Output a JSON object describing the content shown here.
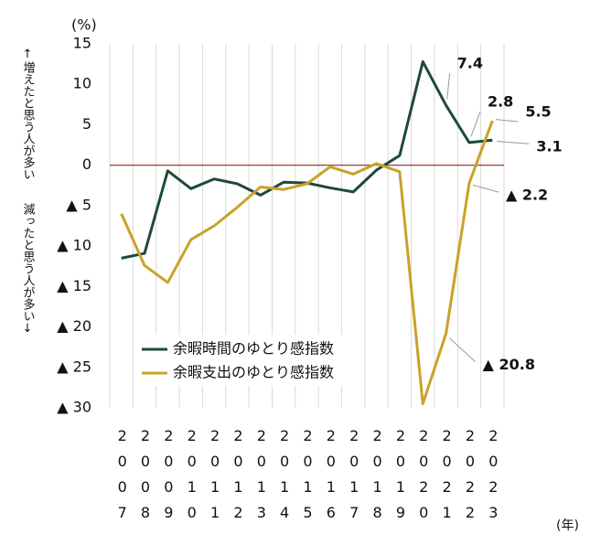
{
  "chart_data": {
    "type": "line",
    "y_unit": "(%)",
    "x_unit": "(年)",
    "y_note_up": "↑増えたと思う人が多い",
    "y_note_down": "減ったと思う人が多い↓",
    "categories": [
      "2007",
      "2008",
      "2009",
      "2010",
      "2011",
      "2012",
      "2013",
      "2014",
      "2015",
      "2016",
      "2017",
      "2018",
      "2019",
      "2020",
      "2021",
      "2022",
      "2023"
    ],
    "series": [
      {
        "name": "余暇時間のゆとり感指数",
        "color": "#1e4a3b",
        "values": [
          -11.5,
          -10.9,
          -0.7,
          -2.9,
          -1.7,
          -2.3,
          -3.7,
          -2.1,
          -2.2,
          -2.8,
          -3.3,
          -0.6,
          1.2,
          12.8,
          7.4,
          2.8,
          3.1
        ],
        "value_labels": [
          null,
          null,
          null,
          null,
          null,
          null,
          null,
          null,
          null,
          null,
          null,
          null,
          null,
          null,
          "7.4",
          "2.8",
          "3.1"
        ],
        "label_color": "#1e3a2b"
      },
      {
        "name": "余暇支出のゆとり感指数",
        "color": "#c9a227",
        "values": [
          -6.0,
          -12.4,
          -14.5,
          -9.2,
          -7.5,
          -5.2,
          -2.7,
          -3.0,
          -2.3,
          -0.2,
          -1.1,
          0.2,
          -0.8,
          -29.5,
          -20.8,
          -2.2,
          5.5
        ],
        "value_labels": [
          null,
          null,
          null,
          null,
          null,
          null,
          null,
          null,
          null,
          null,
          null,
          null,
          null,
          null,
          "▲ 20.8",
          "▲ 2.2",
          "5.5"
        ],
        "label_color": "#6e5210"
      }
    ],
    "ylim": [
      -30,
      15
    ],
    "yticks": [
      15,
      10,
      5,
      0,
      {
        "value": -5,
        "label": "▲ 5"
      },
      {
        "value": -10,
        "label": "▲ 10"
      },
      {
        "value": -15,
        "label": "▲ 15"
      },
      {
        "value": -20,
        "label": "▲ 20"
      },
      {
        "value": -25,
        "label": "▲ 25"
      },
      {
        "value": -30,
        "label": "▲ 30"
      }
    ],
    "zero_line_color": "#8b2a1a"
  }
}
